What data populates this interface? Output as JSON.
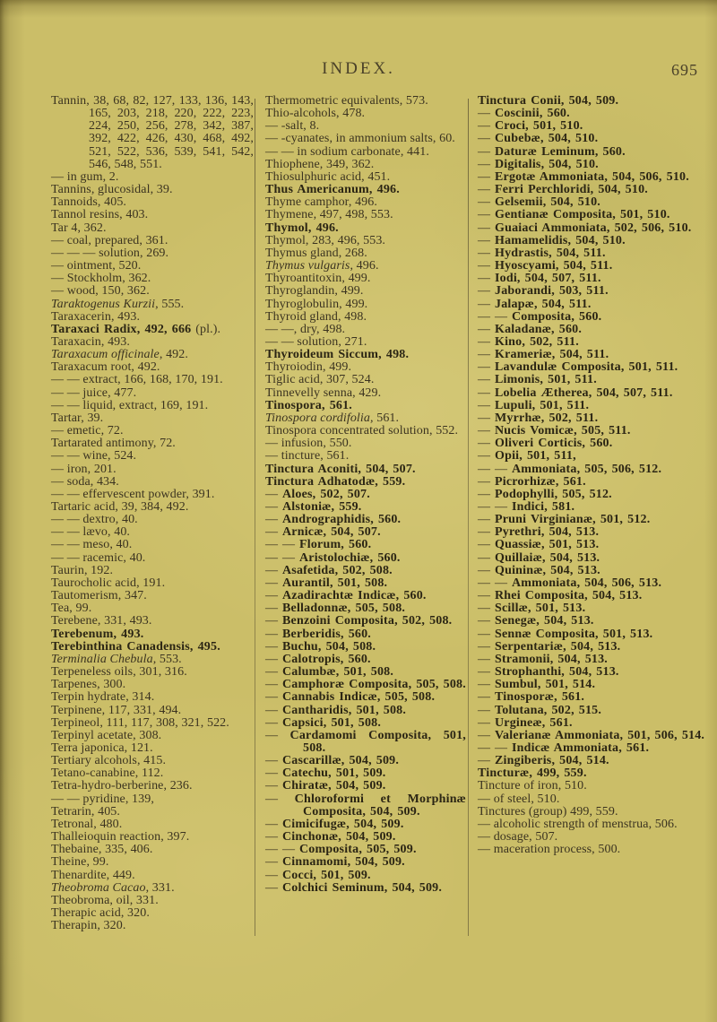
{
  "page": {
    "title": "INDEX.",
    "number": "695"
  },
  "colors": {
    "paper": "#cbbe68",
    "ink": "#3b3320",
    "bold_ink": "#2b2514",
    "rule": "#4a4129"
  },
  "columns": [
    [
      {
        "t": "Tannin, 38, 68, 82, 127, 133, 136, 143, 165, 203, 218, 220, 222, 223, 224, 250, 256, 278, 342, 387, 392, 422, 426, 430, 468, 492, 521, 522, 536, 539, 541, 542, 546, 548, 551."
      },
      {
        "t": "— in gum, 2."
      },
      {
        "t": "Tannins, glucosidal, 39."
      },
      {
        "t": "Tannoids, 405."
      },
      {
        "t": "Tannol resins, 403."
      },
      {
        "t": "Tar 4, 362."
      },
      {
        "t": "— coal, prepared, 361."
      },
      {
        "t": "— — — solution, 269."
      },
      {
        "t": "— ointment, 520."
      },
      {
        "t": "— Stockholm, 362."
      },
      {
        "t": "— wood, 150, 362."
      },
      {
        "i": "Taraktogenus Kurzii",
        "t": ", 555."
      },
      {
        "t": "Taraxacerin, 493."
      },
      {
        "t": "Taraxaci Radix, 492, 666",
        "b": true,
        "r": " (pl.)."
      },
      {
        "t": "Taraxacin, 493."
      },
      {
        "i": "Taraxacum officinale",
        "t": ", 492."
      },
      {
        "t": "Taraxacum root, 492."
      },
      {
        "t": "— — extract, 166, 168, 170, 191."
      },
      {
        "t": "— — juice, 477."
      },
      {
        "t": "— — liquid, extract, 169, 191."
      },
      {
        "t": "Tartar, 39."
      },
      {
        "t": "— emetic, 72."
      },
      {
        "t": "Tartarated antimony, 72."
      },
      {
        "t": "— — wine, 524."
      },
      {
        "t": "— iron, 201."
      },
      {
        "t": "— soda, 434."
      },
      {
        "t": "— — effervescent powder, 391."
      },
      {
        "t": "Tartaric acid, 39, 384, 492."
      },
      {
        "t": "— — dextro, 40."
      },
      {
        "t": "— — lævo, 40."
      },
      {
        "t": "— — meso, 40."
      },
      {
        "t": "— — racemic, 40."
      },
      {
        "t": "Taurin, 192."
      },
      {
        "t": "Taurocholic acid, 191."
      },
      {
        "t": "Tautomerism, 347."
      },
      {
        "t": "Tea, 99."
      },
      {
        "t": "Terebene, 331, 493."
      },
      {
        "t": "Terebenum, 493.",
        "b": true
      },
      {
        "t": "Terebinthina Canadensis, 495.",
        "b": true
      },
      {
        "i": "Terminalia Chebula",
        "t": ", 553."
      },
      {
        "t": "Terpeneless oils, 301, 316."
      },
      {
        "t": "Tarpenes, 300."
      },
      {
        "t": "Terpin hydrate, 314."
      },
      {
        "t": "Terpinene, 117, 331, 494."
      },
      {
        "t": "Terpineol, 111, 117, 308, 321, 522."
      },
      {
        "t": "Terpinyl acetate, 308."
      },
      {
        "t": "Terra japonica, 121."
      },
      {
        "t": "Tertiary alcohols, 415."
      },
      {
        "t": "Tetano-canabine, 112."
      },
      {
        "t": "Tetra-hydro-berberine, 236."
      },
      {
        "t": "— — pyridine, 139,"
      },
      {
        "t": "Tetrarin, 405."
      },
      {
        "t": "Tetronal, 480."
      },
      {
        "t": "Thalleioquin reaction, 397."
      },
      {
        "t": "Thebaine, 335, 406."
      },
      {
        "t": "Theine, 99."
      },
      {
        "t": "Thenardite, 449."
      },
      {
        "i": "Theobroma Cacao",
        "t": ", 331."
      },
      {
        "t": "Theobroma, oil, 331."
      },
      {
        "t": "Therapic acid, 320."
      },
      {
        "t": "Therapin, 320."
      }
    ],
    [
      {
        "t": "Thermometric equivalents, 573."
      },
      {
        "t": "Thio-alcohols, 478."
      },
      {
        "t": "— -salt, 8."
      },
      {
        "t": "— -cyanates, in ammonium salts, 60."
      },
      {
        "t": "— — in sodium carbonate, 441."
      },
      {
        "t": "Thiophene, 349, 362."
      },
      {
        "t": "Thiosulphuric acid, 451."
      },
      {
        "t": "Thus Americanum, 496.",
        "b": true
      },
      {
        "t": "Thyme camphor, 496."
      },
      {
        "t": "Thymene, 497, 498, 553."
      },
      {
        "t": "Thymol, 496.",
        "b": true
      },
      {
        "t": "Thymol, 283, 496, 553."
      },
      {
        "t": "Thymus gland, 268."
      },
      {
        "i": "Thymus vulgaris",
        "t": ", 496."
      },
      {
        "t": "Thyroantitoxin, 499."
      },
      {
        "t": "Thyroglandin, 499."
      },
      {
        "t": "Thyroglobulin, 499."
      },
      {
        "t": "Thyroid gland, 498."
      },
      {
        "t": "— —, dry, 498."
      },
      {
        "t": "— — solution, 271."
      },
      {
        "t": "Thyroideum Siccum, 498.",
        "b": true
      },
      {
        "t": "Thyroiodin, 499."
      },
      {
        "t": "Tiglic acid, 307, 524."
      },
      {
        "t": "Tinnevelly senna, 429."
      },
      {
        "t": "Tinospora, 561.",
        "b": true
      },
      {
        "i": "Tinospora cordifolia",
        "t": ", 561."
      },
      {
        "t": "Tinospora concentrated solution, 552."
      },
      {
        "t": "— infusion, 550."
      },
      {
        "t": "— tincture, 561."
      },
      {
        "t": "Tinctura Aconiti, 504, 507.",
        "b": true
      },
      {
        "t": "Tinctura Adhatodæ, 559.",
        "b": true
      },
      {
        "t": "— Aloes, 502, 507.",
        "b": true
      },
      {
        "t": "— Alstoniæ, 559.",
        "b": true
      },
      {
        "t": "— Andrographidis, 560.",
        "b": true
      },
      {
        "t": "— Arnicæ, 504, 507.",
        "b": true
      },
      {
        "t": "— — Florum, 560.",
        "b": true
      },
      {
        "t": "— — Aristolochiæ, 560.",
        "b": true
      },
      {
        "t": "— Asafetida, 502, 508.",
        "b": true
      },
      {
        "t": "— Aurantil, 501, 508.",
        "b": true
      },
      {
        "t": "— Azadirachtæ Indicæ, 560.",
        "b": true
      },
      {
        "t": "— Belladonnæ, 505, 508.",
        "b": true
      },
      {
        "t": "— Benzoini Composita, 502, 508.",
        "b": true
      },
      {
        "t": "— Berberidis, 560.",
        "b": true
      },
      {
        "t": "— Buchu, 504, 508.",
        "b": true
      },
      {
        "t": "— Calotropis, 560.",
        "b": true
      },
      {
        "t": "— Calumbæ, 501, 508.",
        "b": true
      },
      {
        "t": "— Camphoræ Composita, 505, 508.",
        "b": true
      },
      {
        "t": "— Cannabis Indicæ, 505, 508.",
        "b": true
      },
      {
        "t": "— Cantharidis, 501, 508.",
        "b": true
      },
      {
        "t": "— Capsici, 501, 508.",
        "b": true
      },
      {
        "t": "— Cardamomi Composita, 501, 508.",
        "b": true
      },
      {
        "t": "— Cascarillæ, 504, 509.",
        "b": true
      },
      {
        "t": "— Catechu, 501, 509.",
        "b": true
      },
      {
        "t": "— Chiratæ, 504, 509.",
        "b": true
      },
      {
        "t": "— Chloroformi et Morphinæ Composita, 504, 509.",
        "b": true
      },
      {
        "t": "— Cimicifugæ, 504, 509.",
        "b": true
      },
      {
        "t": "— Cinchonæ, 504, 509.",
        "b": true
      },
      {
        "t": "— — Composita, 505, 509.",
        "b": true
      },
      {
        "t": "— Cinnamomi, 504, 509.",
        "b": true
      },
      {
        "t": "— Cocci, 501, 509.",
        "b": true
      },
      {
        "t": "— Colchici Seminum, 504, 509.",
        "b": true
      }
    ],
    [
      {
        "t": "Tinctura Conii, 504, 509.",
        "b": true
      },
      {
        "t": "— Coscinii, 560.",
        "b": true
      },
      {
        "t": "— Croci, 501, 510.",
        "b": true
      },
      {
        "t": "— Cubebæ, 504, 510.",
        "b": true
      },
      {
        "t": "— Daturæ Leminum, 560.",
        "b": true
      },
      {
        "t": "— Digitalis, 504, 510.",
        "b": true
      },
      {
        "t": "— Ergotæ Ammoniata, 504, 506, 510.",
        "b": true
      },
      {
        "t": "— Ferri Perchloridi, 504, 510.",
        "b": true
      },
      {
        "t": "— Gelsemii, 504, 510.",
        "b": true
      },
      {
        "t": "— Gentianæ Composita, 501, 510.",
        "b": true
      },
      {
        "t": "— Guaiaci Ammoniata, 502, 506, 510.",
        "b": true
      },
      {
        "t": "— Hamamelidis, 504, 510.",
        "b": true
      },
      {
        "t": "— Hydrastis, 504, 511.",
        "b": true
      },
      {
        "t": "— Hyoscyami, 504, 511.",
        "b": true
      },
      {
        "t": "— Iodi, 504, 507, 511.",
        "b": true
      },
      {
        "t": "— Jaborandi, 503, 511.",
        "b": true
      },
      {
        "t": "— Jalapæ, 504, 511.",
        "b": true
      },
      {
        "t": "— — Composita, 560.",
        "b": true
      },
      {
        "t": "— Kaladanæ, 560.",
        "b": true
      },
      {
        "t": "— Kino, 502, 511.",
        "b": true
      },
      {
        "t": "— Krameriæ, 504, 511.",
        "b": true
      },
      {
        "t": "— Lavandulæ Composita, 501, 511.",
        "b": true
      },
      {
        "t": "— Limonis, 501, 511.",
        "b": true
      },
      {
        "t": "— Lobelia Ætherea, 504, 507, 511.",
        "b": true
      },
      {
        "t": "— Lupuli, 501, 511.",
        "b": true
      },
      {
        "t": "— Myrrhæ, 502, 511.",
        "b": true
      },
      {
        "t": "— Nucis Vomicæ, 505, 511.",
        "b": true
      },
      {
        "t": "— Oliveri Corticis, 560.",
        "b": true
      },
      {
        "t": "— Opii, 501, 511,",
        "b": true
      },
      {
        "t": "— — Ammoniata, 505, 506, 512.",
        "b": true
      },
      {
        "t": "— Picrorhizæ, 561.",
        "b": true
      },
      {
        "t": "— Podophylli, 505, 512.",
        "b": true
      },
      {
        "t": "— — Indici, 581.",
        "b": true
      },
      {
        "t": "— Pruni Virginianæ, 501, 512.",
        "b": true
      },
      {
        "t": "— Pyrethri, 504, 513.",
        "b": true
      },
      {
        "t": "— Quassiæ, 501, 513.",
        "b": true
      },
      {
        "t": "— Quillaiæ, 504, 513.",
        "b": true
      },
      {
        "t": "— Quininæ, 504, 513.",
        "b": true
      },
      {
        "t": "— — Ammoniata, 504, 506, 513.",
        "b": true
      },
      {
        "t": "— Rhei Composita, 504, 513.",
        "b": true
      },
      {
        "t": "— Scillæ, 501, 513.",
        "b": true
      },
      {
        "t": "— Senegæ, 504, 513.",
        "b": true
      },
      {
        "t": "— Sennæ Composita, 501, 513.",
        "b": true
      },
      {
        "t": "— Serpentariæ, 504, 513.",
        "b": true
      },
      {
        "t": "— Stramonii, 504, 513.",
        "b": true
      },
      {
        "t": "— Strophanthi, 504, 513.",
        "b": true
      },
      {
        "t": "— Sumbul, 501, 514.",
        "b": true
      },
      {
        "t": "— Tinosporæ, 561.",
        "b": true
      },
      {
        "t": "— Tolutana, 502, 515.",
        "b": true
      },
      {
        "t": "— Urgineæ, 561.",
        "b": true
      },
      {
        "t": "— Valerianæ Ammoniata, 501, 506, 514.",
        "b": true
      },
      {
        "t": "— — Indicæ Ammoniata, 561.",
        "b": true
      },
      {
        "t": "— Zingiberis, 504, 514.",
        "b": true
      },
      {
        "t": "Tincturæ, 499, 559.",
        "b": true
      },
      {
        "t": "Tincture of iron, 510."
      },
      {
        "t": "— of steel, 510."
      },
      {
        "t": "Tinctures (group) 499, 559."
      },
      {
        "t": "— alcoholic strength of menstrua, 506."
      },
      {
        "t": "— dosage, 507."
      },
      {
        "t": "— maceration process, 500."
      }
    ]
  ]
}
